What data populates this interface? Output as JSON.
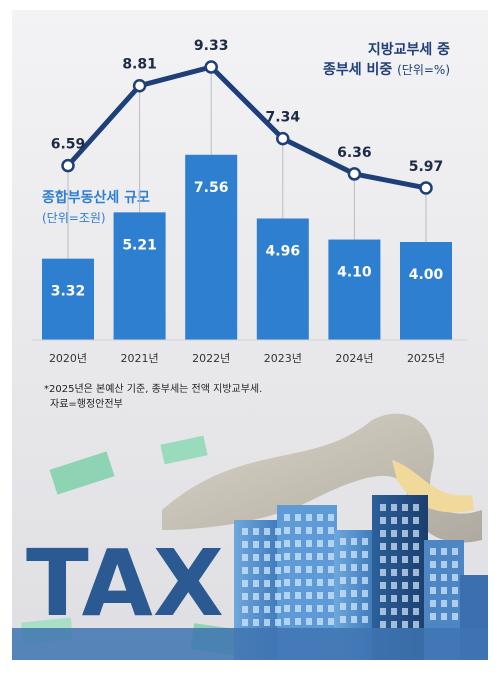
{
  "chart_data": {
    "type": "bar+line",
    "categories": [
      "2020년",
      "2021년",
      "2022년",
      "2023년",
      "2024년",
      "2025년"
    ],
    "bar_series": {
      "name": "종합부동산세 규모",
      "unit": "(단위=조원)",
      "values": [
        3.32,
        5.21,
        7.56,
        4.96,
        4.1,
        4.0
      ],
      "color": "#2f7fd0"
    },
    "line_series": {
      "name": "지방교부세 중 종부세 비중",
      "name_line1": "지방교부세 중",
      "name_line2": "종부세 비중",
      "unit": "(단위=%)",
      "values": [
        6.59,
        8.81,
        9.33,
        7.34,
        6.36,
        5.97
      ],
      "color": "#1f3f79"
    },
    "bar_labels": [
      "3.32",
      "5.21",
      "7.56",
      "4.96",
      "4.10",
      "4.00"
    ],
    "line_labels": [
      "6.59",
      "8.81",
      "9.33",
      "7.34",
      "6.36",
      "5.97"
    ]
  },
  "footnote": {
    "line1": "*2025년은 본예산 기준, 종부세는 전액 지방교부세.",
    "line2": "자료=행정안전부"
  },
  "illustration": {
    "text": "TAX"
  }
}
